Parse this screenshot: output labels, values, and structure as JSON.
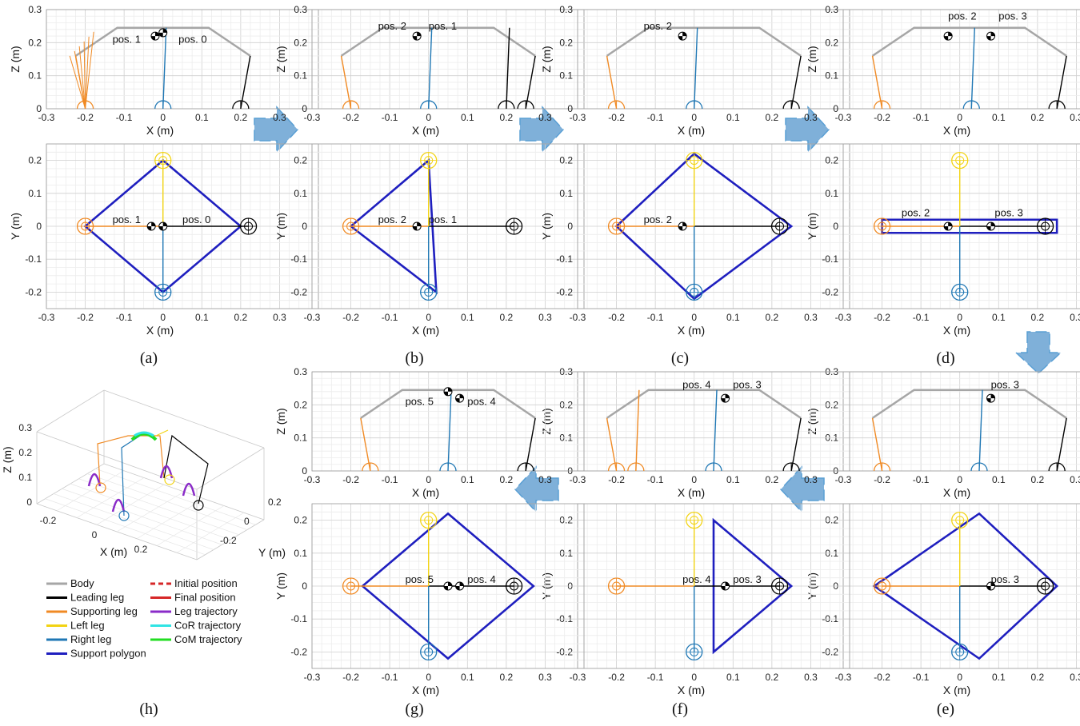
{
  "figure": {
    "captions": [
      "(a)",
      "(b)",
      "(c)",
      "(d)",
      "(e)",
      "(f)",
      "(g)",
      "(h)"
    ]
  },
  "colors": {
    "body": "#a6a6a6",
    "leading": "#000000",
    "supporting": "#f08a24",
    "left": "#f2d313",
    "right": "#1f77b4",
    "polygon": "#1f1fbf",
    "initial": "#d62728",
    "final": "#d62728",
    "legtraj": "#8a2bc8",
    "cor": "#31e4e4",
    "com": "#22dd22",
    "arrow": "#7fb0d9"
  },
  "legend": {
    "items": [
      {
        "label": "Body",
        "color": "#a6a6a6",
        "dash": false
      },
      {
        "label": "Initial position",
        "color": "#d62728",
        "dash": true
      },
      {
        "label": "Leading leg",
        "color": "#000000",
        "dash": false
      },
      {
        "label": "Final position",
        "color": "#d62728",
        "dash": false
      },
      {
        "label": "Supporting leg",
        "color": "#f08a24",
        "dash": false
      },
      {
        "label": "Leg trajectory",
        "color": "#8a2bc8",
        "dash": false
      },
      {
        "label": "Left leg",
        "color": "#f2d313",
        "dash": false
      },
      {
        "label": "CoR trajectory",
        "color": "#31e4e4",
        "dash": false
      },
      {
        "label": "Right leg",
        "color": "#1f77b4",
        "dash": false
      },
      {
        "label": "CoM trajectory",
        "color": "#22dd22",
        "dash": false
      },
      {
        "label": "Support polygon",
        "color": "#1f1fbf",
        "dash": false
      }
    ]
  },
  "chart_data": [
    {
      "id": "a-side",
      "type": "line",
      "panel": "(a)",
      "xlabel": "X (m)",
      "ylabel": "Z (m)",
      "xlim": [
        -0.3,
        0.4
      ],
      "ylim": [
        0,
        0.3
      ],
      "xticks": [
        "-0.3",
        "-0.2",
        "-0.1",
        "0",
        "0.1",
        "0.2",
        "0.3"
      ],
      "yticks": [
        "0",
        "0.1",
        "0.2",
        "0.3"
      ],
      "annotations": [
        {
          "text": "pos. 1",
          "x": -0.13,
          "y": 0.2
        },
        {
          "text": "pos. 0",
          "x": 0.04,
          "y": 0.2
        }
      ],
      "feet": [
        {
          "x": -0.2,
          "color": "supporting"
        },
        {
          "x": 0.0,
          "color": "right"
        },
        {
          "x": 0.2,
          "color": "leading"
        }
      ],
      "com": [
        {
          "x": -0.02,
          "y": 0.22
        },
        {
          "x": 0.0,
          "y": 0.23
        }
      ],
      "fan_from": {
        "x": -0.24,
        "y": 0.16
      },
      "fan_to": {
        "x": -0.2,
        "y": 0.0
      }
    },
    {
      "id": "a-top",
      "type": "line",
      "panel": "(a)",
      "xlabel": "X (m)",
      "ylabel": "Y (m)",
      "xlim": [
        -0.3,
        0.4
      ],
      "ylim": [
        -0.25,
        0.25
      ],
      "xticks": [
        "-0.3",
        "-0.2",
        "-0.1",
        "0",
        "0.1",
        "0.2",
        "0.3"
      ],
      "yticks": [
        "-0.2",
        "-0.1",
        "0",
        "0.1",
        "0.2"
      ],
      "annotations": [
        {
          "text": "pos. 1",
          "x": -0.13,
          "y": 0.01
        },
        {
          "text": "pos. 0",
          "x": 0.05,
          "y": 0.01
        }
      ],
      "polygon": [
        [
          -0.2,
          0
        ],
        [
          0,
          0.2
        ],
        [
          0.2,
          0
        ],
        [
          0,
          -0.2
        ]
      ],
      "com": [
        {
          "x": -0.03,
          "y": 0
        },
        {
          "x": 0.0,
          "y": 0
        }
      ]
    },
    {
      "id": "b-side",
      "type": "line",
      "panel": "(b)",
      "xlabel": "X (m)",
      "ylabel": "Z (m)",
      "xlim": [
        -0.3,
        0.4
      ],
      "ylim": [
        0,
        0.3
      ],
      "xticks": [
        "-0.3",
        "-0.2",
        "-0.1",
        "0",
        "0.1",
        "0.2",
        "0.3"
      ],
      "yticks": [
        "0",
        "0.1",
        "0.2",
        "0.3"
      ],
      "annotations": [
        {
          "text": "pos. 2",
          "x": -0.13,
          "y": 0.24
        },
        {
          "text": "pos. 1",
          "x": 0.0,
          "y": 0.24
        }
      ],
      "feet": [
        {
          "x": -0.2,
          "color": "supporting"
        },
        {
          "x": 0.0,
          "color": "right"
        },
        {
          "x": 0.2,
          "color": "leading"
        },
        {
          "x": 0.25,
          "color": "leading"
        }
      ],
      "com": [
        {
          "x": -0.03,
          "y": 0.22
        }
      ]
    },
    {
      "id": "b-top",
      "type": "line",
      "panel": "(b)",
      "xlabel": "X (m)",
      "ylabel": "Y (m)",
      "xlim": [
        -0.3,
        0.4
      ],
      "ylim": [
        -0.25,
        0.25
      ],
      "xticks": [
        "-0.3",
        "-0.2",
        "-0.1",
        "0",
        "0.1",
        "0.2",
        "0.3"
      ],
      "yticks": [
        "-0.2",
        "-0.1",
        "0",
        "0.1",
        "0.2"
      ],
      "annotations": [
        {
          "text": "pos. 2",
          "x": -0.13,
          "y": 0.01
        },
        {
          "text": "pos. 1",
          "x": 0.0,
          "y": 0.01
        }
      ],
      "polygon": [
        [
          -0.2,
          0
        ],
        [
          0,
          0.2
        ],
        [
          0.02,
          -0.2
        ]
      ],
      "com": [
        {
          "x": -0.03,
          "y": 0
        }
      ]
    },
    {
      "id": "c-side",
      "type": "line",
      "panel": "(c)",
      "xlabel": "X (m)",
      "ylabel": "Z (m)",
      "xlim": [
        -0.3,
        0.4
      ],
      "ylim": [
        0,
        0.3
      ],
      "xticks": [
        "-0.3",
        "-0.2",
        "-0.1",
        "0",
        "0.1",
        "0.2",
        "0.3"
      ],
      "yticks": [
        "0",
        "0.1",
        "0.2",
        "0.3"
      ],
      "annotations": [
        {
          "text": "pos. 2",
          "x": -0.13,
          "y": 0.24
        }
      ],
      "feet": [
        {
          "x": -0.2,
          "color": "supporting"
        },
        {
          "x": 0.0,
          "color": "right"
        },
        {
          "x": 0.25,
          "color": "leading"
        }
      ],
      "com": [
        {
          "x": -0.03,
          "y": 0.22
        }
      ]
    },
    {
      "id": "c-top",
      "type": "line",
      "panel": "(c)",
      "xlabel": "X (m)",
      "ylabel": "Y (m)",
      "xlim": [
        -0.3,
        0.4
      ],
      "ylim": [
        -0.25,
        0.25
      ],
      "xticks": [
        "-0.3",
        "-0.2",
        "-0.1",
        "0",
        "0.1",
        "0.2",
        "0.3"
      ],
      "yticks": [
        "-0.2",
        "-0.1",
        "0",
        "0.1",
        "0.2"
      ],
      "annotations": [
        {
          "text": "pos. 2",
          "x": -0.13,
          "y": 0.01
        }
      ],
      "polygon": [
        [
          -0.2,
          0
        ],
        [
          0,
          0.22
        ],
        [
          0.25,
          0
        ],
        [
          0,
          -0.22
        ]
      ],
      "com": [
        {
          "x": -0.03,
          "y": 0
        }
      ]
    },
    {
      "id": "d-side",
      "type": "line",
      "panel": "(d)",
      "xlabel": "X (m)",
      "ylabel": "Z (m)",
      "xlim": [
        -0.3,
        0.4
      ],
      "ylim": [
        0,
        0.3
      ],
      "xticks": [
        "-0.3",
        "-0.2",
        "-0.1",
        "0",
        "0.1",
        "0.2",
        "0.3"
      ],
      "yticks": [
        "0",
        "0.1",
        "0.2",
        "0.3"
      ],
      "annotations": [
        {
          "text": "pos. 2",
          "x": -0.03,
          "y": 0.27
        },
        {
          "text": "pos. 3",
          "x": 0.1,
          "y": 0.27
        }
      ],
      "feet": [
        {
          "x": -0.2,
          "color": "supporting"
        },
        {
          "x": 0.03,
          "color": "right"
        },
        {
          "x": 0.25,
          "color": "leading"
        }
      ],
      "com": [
        {
          "x": -0.03,
          "y": 0.22
        },
        {
          "x": 0.08,
          "y": 0.22
        }
      ]
    },
    {
      "id": "d-top",
      "type": "line",
      "panel": "(d)",
      "xlabel": "X (m)",
      "ylabel": "Y (m)",
      "xlim": [
        -0.3,
        0.4
      ],
      "ylim": [
        -0.25,
        0.25
      ],
      "xticks": [
        "-0.3",
        "-0.2",
        "-0.1",
        "0",
        "0.1",
        "0.2",
        "0.3"
      ],
      "yticks": [
        "-0.2",
        "-0.1",
        "0",
        "0.1",
        "0.2"
      ],
      "annotations": [
        {
          "text": "pos. 2",
          "x": -0.15,
          "y": 0.03
        },
        {
          "text": "pos. 3",
          "x": 0.09,
          "y": 0.03
        }
      ],
      "polygon": [
        [
          -0.2,
          0.02
        ],
        [
          0.25,
          0.02
        ],
        [
          0.25,
          -0.02
        ],
        [
          -0.2,
          -0.02
        ]
      ],
      "com": [
        {
          "x": -0.03,
          "y": 0
        },
        {
          "x": 0.08,
          "y": 0
        }
      ]
    },
    {
      "id": "e-side",
      "type": "line",
      "panel": "(e)",
      "xlabel": "X (m)",
      "ylabel": "Z (m)",
      "xlim": [
        -0.3,
        0.4
      ],
      "ylim": [
        0,
        0.3
      ],
      "xticks": [
        "-0.3",
        "-0.2",
        "-0.1",
        "0",
        "0.1",
        "0.2",
        "0.3"
      ],
      "yticks": [
        "0",
        "0.1",
        "0.2",
        "0.3"
      ],
      "annotations": [
        {
          "text": "pos. 3",
          "x": 0.08,
          "y": 0.25
        }
      ],
      "feet": [
        {
          "x": -0.2,
          "color": "supporting"
        },
        {
          "x": 0.05,
          "color": "right"
        },
        {
          "x": 0.25,
          "color": "leading"
        }
      ],
      "com": [
        {
          "x": 0.08,
          "y": 0.22
        }
      ]
    },
    {
      "id": "e-top",
      "type": "line",
      "panel": "(e)",
      "xlabel": "X (m)",
      "ylabel": "Y (m)",
      "xlim": [
        -0.3,
        0.4
      ],
      "ylim": [
        -0.25,
        0.25
      ],
      "xticks": [
        "-0.3",
        "-0.2",
        "-0.1",
        "0",
        "0.1",
        "0.2",
        "0.3"
      ],
      "yticks": [
        "-0.2",
        "-0.1",
        "0",
        "0.1",
        "0.2"
      ],
      "annotations": [
        {
          "text": "pos. 3",
          "x": 0.08,
          "y": 0.01
        }
      ],
      "polygon": [
        [
          -0.22,
          0
        ],
        [
          0.05,
          0.22
        ],
        [
          0.25,
          0
        ],
        [
          0.05,
          -0.22
        ]
      ],
      "com": [
        {
          "x": 0.08,
          "y": 0
        }
      ]
    },
    {
      "id": "f-side",
      "type": "line",
      "panel": "(f)",
      "xlabel": "X (m)",
      "ylabel": "Z (m)",
      "xlim": [
        -0.3,
        0.4
      ],
      "ylim": [
        0,
        0.3
      ],
      "xticks": [
        "-0.3",
        "-0.2",
        "-0.1",
        "0",
        "0.1",
        "0.2",
        "0.3"
      ],
      "yticks": [
        "0",
        "0.1",
        "0.2",
        "0.3"
      ],
      "annotations": [
        {
          "text": "pos. 4",
          "x": -0.03,
          "y": 0.25
        },
        {
          "text": "pos. 3",
          "x": 0.1,
          "y": 0.25
        }
      ],
      "feet": [
        {
          "x": -0.2,
          "color": "supporting"
        },
        {
          "x": -0.15,
          "color": "supporting"
        },
        {
          "x": 0.05,
          "color": "right"
        },
        {
          "x": 0.25,
          "color": "leading"
        }
      ],
      "com": [
        {
          "x": 0.08,
          "y": 0.22
        }
      ]
    },
    {
      "id": "f-top",
      "type": "line",
      "panel": "(f)",
      "xlabel": "X (m)",
      "ylabel": "Y (m)",
      "xlim": [
        -0.3,
        0.4
      ],
      "ylim": [
        -0.25,
        0.25
      ],
      "xticks": [
        "-0.3",
        "-0.2",
        "-0.1",
        "0",
        "0.1",
        "0.2",
        "0.3"
      ],
      "yticks": [
        "-0.2",
        "-0.1",
        "0",
        "0.1",
        "0.2"
      ],
      "annotations": [
        {
          "text": "pos. 4",
          "x": -0.03,
          "y": 0.01
        },
        {
          "text": "pos. 3",
          "x": 0.1,
          "y": 0.01
        }
      ],
      "polygon": [
        [
          0.05,
          0.2
        ],
        [
          0.25,
          0
        ],
        [
          0.05,
          -0.2
        ]
      ],
      "com": [
        {
          "x": 0.08,
          "y": 0
        }
      ]
    },
    {
      "id": "g-side",
      "type": "line",
      "panel": "(g)",
      "xlabel": "X (m)",
      "ylabel": "Z (m)",
      "xlim": [
        -0.3,
        0.4
      ],
      "ylim": [
        0,
        0.3
      ],
      "xticks": [
        "-0.3",
        "-0.2",
        "-0.1",
        "0",
        "0.1",
        "0.2",
        "0.3"
      ],
      "yticks": [
        "0",
        "0.1",
        "0.2",
        "0.3"
      ],
      "annotations": [
        {
          "text": "pos. 5",
          "x": -0.06,
          "y": 0.2
        },
        {
          "text": "pos. 4",
          "x": 0.1,
          "y": 0.2
        }
      ],
      "feet": [
        {
          "x": -0.15,
          "color": "supporting"
        },
        {
          "x": 0.05,
          "color": "right"
        },
        {
          "x": 0.25,
          "color": "leading"
        }
      ],
      "com": [
        {
          "x": 0.05,
          "y": 0.24
        },
        {
          "x": 0.08,
          "y": 0.22
        }
      ]
    },
    {
      "id": "g-top",
      "type": "line",
      "panel": "(g)",
      "xlabel": "X (m)",
      "ylabel": "Y (m)",
      "xlim": [
        -0.3,
        0.4
      ],
      "ylim": [
        -0.25,
        0.25
      ],
      "xticks": [
        "-0.3",
        "-0.2",
        "-0.1",
        "0",
        "0.1",
        "0.2",
        "0.3"
      ],
      "yticks": [
        "-0.2",
        "-0.1",
        "0",
        "0.1",
        "0.2"
      ],
      "annotations": [
        {
          "text": "pos. 5",
          "x": -0.06,
          "y": 0.01
        },
        {
          "text": "pos. 4",
          "x": 0.1,
          "y": 0.01
        }
      ],
      "polygon": [
        [
          -0.17,
          0
        ],
        [
          0.05,
          0.22
        ],
        [
          0.27,
          0
        ],
        [
          0.05,
          -0.22
        ]
      ],
      "com": [
        {
          "x": 0.05,
          "y": 0
        },
        {
          "x": 0.08,
          "y": 0
        }
      ]
    },
    {
      "id": "h-3d",
      "type": "line",
      "panel": "(h)",
      "xlabel": "X (m)",
      "ylabel": "Y (m)",
      "zlabel": "Z (m)",
      "xticks": [
        "-0.2",
        "0",
        "0.2"
      ],
      "yticks": [
        "-0.2",
        "0",
        "0.2"
      ],
      "zticks": [
        "0",
        "0.1",
        "0.2",
        "0.3"
      ]
    }
  ]
}
